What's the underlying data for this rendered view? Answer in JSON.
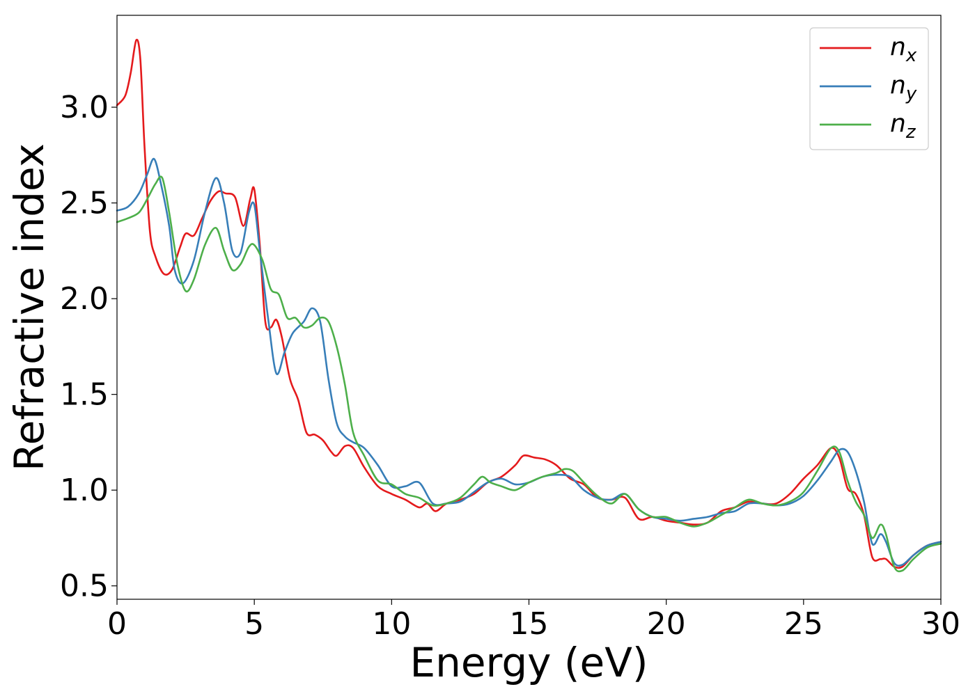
{
  "chart_data": {
    "type": "line",
    "title": "",
    "xlabel": "Energy (eV)",
    "ylabel": "Refractive index",
    "xlim": [
      0,
      30
    ],
    "ylim": [
      0.43,
      3.48
    ],
    "xticks": [
      0,
      5,
      10,
      15,
      20,
      25,
      30
    ],
    "xtick_labels": [
      "0",
      "5",
      "10",
      "15",
      "20",
      "25",
      "30"
    ],
    "yticks": [
      0.5,
      1.0,
      1.5,
      2.0,
      2.5,
      3.0
    ],
    "ytick_labels": [
      "0.5",
      "1.0",
      "1.5",
      "2.0",
      "2.5",
      "3.0"
    ],
    "grid": false,
    "legend_position": "top-right",
    "series": [
      {
        "name": "n_x",
        "label_base": "n",
        "label_sub": "x",
        "color": "#e41a1c",
        "x": [
          0,
          0.3,
          0.5,
          0.7,
          0.85,
          1.0,
          1.2,
          1.4,
          1.7,
          2.0,
          2.3,
          2.5,
          2.8,
          3.1,
          3.4,
          3.7,
          3.95,
          4.3,
          4.6,
          4.85,
          5.0,
          5.2,
          5.4,
          5.6,
          5.8,
          6.0,
          6.3,
          6.6,
          6.9,
          7.2,
          7.5,
          7.8,
          8.0,
          8.3,
          8.6,
          9.0,
          9.5,
          10.0,
          10.5,
          11.0,
          11.3,
          11.6,
          12.0,
          12.5,
          13.0,
          13.5,
          14.0,
          14.5,
          14.8,
          15.2,
          15.6,
          16.0,
          16.5,
          17.0,
          17.5,
          18.0,
          18.5,
          19.0,
          19.5,
          20.0,
          20.5,
          21.0,
          21.5,
          22.0,
          22.5,
          23.0,
          23.5,
          24.0,
          24.5,
          25.0,
          25.5,
          26.0,
          26.3,
          26.6,
          26.9,
          27.2,
          27.5,
          27.8,
          28.0,
          28.3,
          28.6,
          29.0,
          29.5,
          30.0
        ],
        "y": [
          3.01,
          3.06,
          3.18,
          3.35,
          3.25,
          2.8,
          2.35,
          2.22,
          2.13,
          2.15,
          2.27,
          2.34,
          2.33,
          2.42,
          2.51,
          2.56,
          2.55,
          2.53,
          2.38,
          2.52,
          2.57,
          2.28,
          1.88,
          1.85,
          1.89,
          1.8,
          1.58,
          1.47,
          1.3,
          1.29,
          1.26,
          1.2,
          1.18,
          1.23,
          1.22,
          1.12,
          1.02,
          0.98,
          0.95,
          0.91,
          0.93,
          0.89,
          0.93,
          0.95,
          0.98,
          1.04,
          1.07,
          1.13,
          1.18,
          1.17,
          1.16,
          1.13,
          1.06,
          1.03,
          0.96,
          0.95,
          0.96,
          0.85,
          0.86,
          0.84,
          0.83,
          0.82,
          0.83,
          0.89,
          0.91,
          0.94,
          0.93,
          0.93,
          0.98,
          1.06,
          1.13,
          1.22,
          1.17,
          1.01,
          0.98,
          0.87,
          0.65,
          0.64,
          0.64,
          0.6,
          0.6,
          0.66,
          0.71,
          0.73
        ]
      },
      {
        "name": "n_y",
        "label_base": "n",
        "label_sub": "y",
        "color": "#377eb8",
        "x": [
          0,
          0.4,
          0.8,
          1.1,
          1.35,
          1.6,
          1.9,
          2.1,
          2.4,
          2.8,
          3.2,
          3.6,
          3.9,
          4.2,
          4.5,
          4.8,
          5.0,
          5.2,
          5.5,
          5.8,
          6.1,
          6.4,
          6.8,
          7.1,
          7.4,
          7.7,
          8.0,
          8.3,
          8.6,
          9.0,
          9.5,
          10.0,
          10.5,
          11.0,
          11.5,
          12.0,
          12.5,
          13.0,
          13.5,
          14.0,
          14.5,
          15.0,
          15.5,
          16.0,
          16.5,
          17.0,
          17.5,
          18.0,
          18.5,
          19.0,
          19.5,
          20.0,
          20.5,
          21.0,
          21.5,
          22.0,
          22.5,
          23.0,
          23.5,
          24.0,
          24.5,
          25.0,
          25.5,
          26.0,
          26.3,
          26.6,
          26.9,
          27.2,
          27.5,
          27.8,
          28.0,
          28.3,
          28.6,
          29.0,
          29.5,
          30.0
        ],
        "y": [
          2.46,
          2.48,
          2.55,
          2.65,
          2.73,
          2.6,
          2.38,
          2.15,
          2.08,
          2.2,
          2.45,
          2.63,
          2.5,
          2.25,
          2.24,
          2.45,
          2.49,
          2.25,
          1.9,
          1.61,
          1.72,
          1.82,
          1.88,
          1.95,
          1.88,
          1.58,
          1.35,
          1.28,
          1.25,
          1.22,
          1.13,
          1.02,
          1.02,
          1.04,
          0.93,
          0.93,
          0.94,
          0.99,
          1.04,
          1.06,
          1.03,
          1.04,
          1.07,
          1.08,
          1.07,
          1.0,
          0.96,
          0.95,
          0.98,
          0.9,
          0.86,
          0.85,
          0.84,
          0.85,
          0.86,
          0.88,
          0.89,
          0.93,
          0.93,
          0.92,
          0.93,
          0.97,
          1.05,
          1.15,
          1.21,
          1.2,
          1.1,
          0.94,
          0.72,
          0.77,
          0.73,
          0.62,
          0.61,
          0.66,
          0.71,
          0.73
        ]
      },
      {
        "name": "n_z",
        "label_base": "n",
        "label_sub": "z",
        "color": "#4daf4a",
        "x": [
          0,
          0.4,
          0.8,
          1.1,
          1.4,
          1.65,
          1.9,
          2.2,
          2.5,
          2.8,
          3.2,
          3.6,
          3.9,
          4.2,
          4.5,
          4.8,
          5.0,
          5.3,
          5.6,
          5.9,
          6.2,
          6.5,
          6.8,
          7.1,
          7.4,
          7.7,
          8.0,
          8.3,
          8.6,
          9.0,
          9.5,
          10.0,
          10.5,
          11.0,
          11.5,
          12.0,
          12.5,
          13.0,
          13.3,
          13.6,
          14.0,
          14.5,
          15.0,
          15.5,
          16.0,
          16.3,
          16.6,
          17.0,
          17.5,
          18.0,
          18.5,
          19.0,
          19.5,
          20.0,
          20.5,
          21.0,
          21.5,
          22.0,
          22.5,
          23.0,
          23.5,
          24.0,
          24.5,
          25.0,
          25.5,
          26.0,
          26.3,
          26.6,
          26.9,
          27.2,
          27.5,
          27.8,
          28.0,
          28.3,
          28.6,
          29.0,
          29.5,
          30.0
        ],
        "y": [
          2.4,
          2.42,
          2.45,
          2.52,
          2.6,
          2.63,
          2.45,
          2.18,
          2.04,
          2.1,
          2.28,
          2.37,
          2.25,
          2.15,
          2.18,
          2.27,
          2.28,
          2.2,
          2.05,
          2.02,
          1.9,
          1.9,
          1.85,
          1.86,
          1.9,
          1.88,
          1.75,
          1.55,
          1.3,
          1.18,
          1.05,
          1.03,
          0.98,
          0.96,
          0.92,
          0.93,
          0.96,
          1.03,
          1.07,
          1.04,
          1.02,
          1.0,
          1.04,
          1.07,
          1.09,
          1.11,
          1.1,
          1.04,
          0.97,
          0.93,
          0.98,
          0.9,
          0.86,
          0.86,
          0.83,
          0.81,
          0.83,
          0.87,
          0.91,
          0.95,
          0.93,
          0.92,
          0.94,
          0.99,
          1.1,
          1.22,
          1.2,
          1.05,
          0.94,
          0.87,
          0.75,
          0.82,
          0.77,
          0.6,
          0.58,
          0.64,
          0.7,
          0.72
        ]
      }
    ]
  }
}
